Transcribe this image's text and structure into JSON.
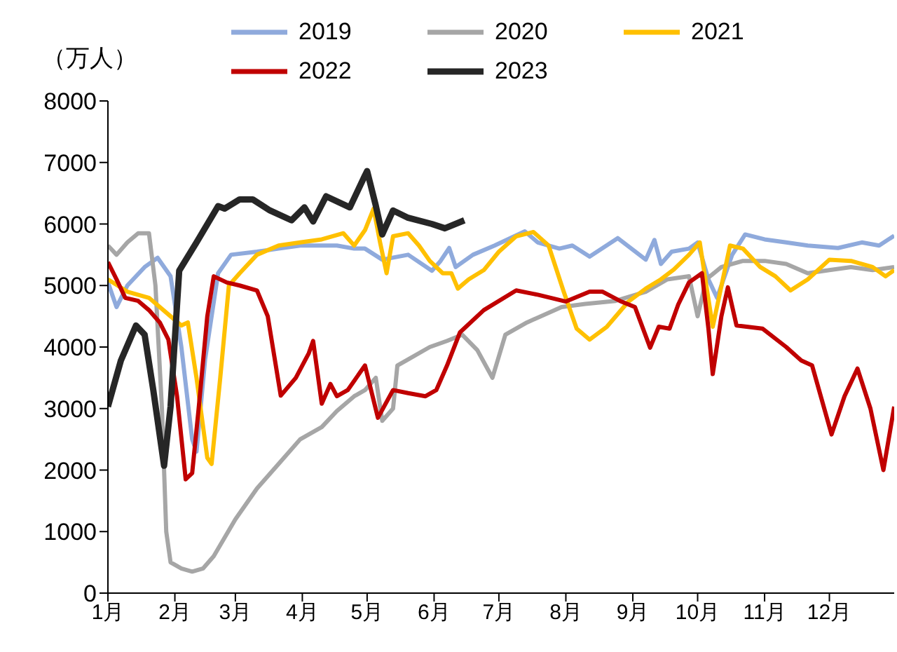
{
  "chart_data": {
    "type": "line",
    "ylabel": "（万人）",
    "xlim": [
      "--01-01",
      "--12-31"
    ],
    "ylim": [
      0,
      8000
    ],
    "yticks": [
      0,
      1000,
      2000,
      3000,
      4000,
      5000,
      6000,
      7000,
      8000
    ],
    "xticks": [
      {
        "value": "--01-01",
        "label": "1月"
      },
      {
        "value": "--02-01",
        "label": "2月"
      },
      {
        "value": "--03-01",
        "label": "3月"
      },
      {
        "value": "--04-01",
        "label": "4月"
      },
      {
        "value": "--05-01",
        "label": "5月"
      },
      {
        "value": "--06-01",
        "label": "6月"
      },
      {
        "value": "--07-01",
        "label": "7月"
      },
      {
        "value": "--08-01",
        "label": "8月"
      },
      {
        "value": "--09-01",
        "label": "9月"
      },
      {
        "value": "--10-01",
        "label": "10月"
      },
      {
        "value": "--11-01",
        "label": "11月"
      },
      {
        "value": "--12-01",
        "label": "12月"
      }
    ],
    "grid": false,
    "legend": "top",
    "marker": "none",
    "line_style": "solid",
    "series": [
      {
        "name": "2019",
        "color": "#8faadc",
        "x": [
          "--01-01",
          "--01-05",
          "--01-10",
          "--01-18",
          "--01-24",
          "--01-30",
          "--02-04",
          "--02-09",
          "--02-11",
          "--02-15",
          "--02-21",
          "--02-27",
          "--03-11",
          "--03-21",
          "--03-31",
          "--04-10",
          "--04-17",
          "--04-25",
          "--04-30",
          "--05-08",
          "--05-20",
          "--05-31",
          "--06-04",
          "--06-08",
          "--06-11",
          "--06-19",
          "--06-29",
          "--07-13",
          "--07-19",
          "--07-29",
          "--08-04",
          "--08-12",
          "--08-25",
          "--09-07",
          "--09-11",
          "--09-14",
          "--09-19",
          "--09-27",
          "--10-01",
          "--10-06",
          "--10-10",
          "--10-17",
          "--10-23",
          "--11-01",
          "--11-11",
          "--11-21",
          "--12-05",
          "--12-16",
          "--12-24",
          "--12-31"
        ],
        "values": [
          5050,
          4650,
          5000,
          5300,
          5450,
          5150,
          4000,
          2500,
          2300,
          3800,
          5200,
          5500,
          5550,
          5600,
          5650,
          5650,
          5650,
          5600,
          5600,
          5420,
          5500,
          5240,
          5400,
          5610,
          5300,
          5500,
          5650,
          5880,
          5700,
          5600,
          5650,
          5470,
          5770,
          5420,
          5740,
          5350,
          5550,
          5600,
          5700,
          5100,
          4800,
          5500,
          5830,
          5750,
          5700,
          5650,
          5610,
          5700,
          5650,
          5810
        ]
      },
      {
        "name": "2020",
        "color": "#a6a6a6",
        "x": [
          "--01-01",
          "--01-05",
          "--01-10",
          "--01-15",
          "--01-20",
          "--01-23",
          "--01-26",
          "--01-28",
          "--01-30",
          "--02-04",
          "--02-09",
          "--02-14",
          "--02-19",
          "--02-24",
          "--03-01",
          "--03-11",
          "--03-21",
          "--03-31",
          "--04-10",
          "--04-17",
          "--04-25",
          "--04-30",
          "--05-05",
          "--05-08",
          "--05-13",
          "--05-15",
          "--05-20",
          "--05-30",
          "--06-07",
          "--06-14",
          "--06-21",
          "--06-28",
          "--07-04",
          "--07-14",
          "--07-30",
          "--08-10",
          "--08-24",
          "--09-07",
          "--09-17",
          "--09-27",
          "--10-01",
          "--10-05",
          "--10-12",
          "--10-22",
          "--11-01",
          "--11-11",
          "--11-21",
          "--12-01",
          "--12-11",
          "--12-21",
          "--12-31"
        ],
        "values": [
          5650,
          5500,
          5700,
          5850,
          5850,
          5000,
          3000,
          1000,
          500,
          400,
          350,
          400,
          600,
          900,
          1200,
          1700,
          2100,
          2500,
          2700,
          2960,
          3200,
          3300,
          3500,
          2800,
          3000,
          3700,
          3800,
          4000,
          4100,
          4200,
          3950,
          3500,
          4200,
          4400,
          4650,
          4700,
          4750,
          4900,
          5100,
          5150,
          4500,
          5100,
          5300,
          5400,
          5400,
          5350,
          5200,
          5250,
          5300,
          5250,
          5300
        ]
      },
      {
        "name": "2021",
        "color": "#ffc000",
        "x": [
          "--01-01",
          "--01-10",
          "--01-20",
          "--01-30",
          "--02-04",
          "--02-07",
          "--02-11",
          "--02-16",
          "--02-18",
          "--02-22",
          "--02-26",
          "--03-03",
          "--03-11",
          "--03-21",
          "--03-31",
          "--04-10",
          "--04-20",
          "--04-25",
          "--04-30",
          "--05-04",
          "--05-07",
          "--05-10",
          "--05-13",
          "--05-20",
          "--05-25",
          "--05-30",
          "--06-05",
          "--06-09",
          "--06-12",
          "--06-17",
          "--06-24",
          "--07-01",
          "--07-09",
          "--07-17",
          "--07-24",
          "--07-31",
          "--08-06",
          "--08-12",
          "--08-20",
          "--08-30",
          "--09-07",
          "--09-14",
          "--09-20",
          "--09-27",
          "--10-02",
          "--10-05",
          "--10-08",
          "--10-16",
          "--10-22",
          "--10-30",
          "--11-06",
          "--11-13",
          "--11-21",
          "--12-01",
          "--12-11",
          "--12-21",
          "--12-27",
          "--12-31"
        ],
        "values": [
          5100,
          4900,
          4800,
          4500,
          4350,
          4400,
          3500,
          2200,
          2100,
          3500,
          5000,
          5200,
          5500,
          5650,
          5700,
          5750,
          5850,
          5650,
          5900,
          6250,
          5700,
          5200,
          5800,
          5850,
          5650,
          5400,
          5200,
          5200,
          4950,
          5100,
          5250,
          5550,
          5800,
          5870,
          5650,
          4900,
          4300,
          4120,
          4330,
          4740,
          4950,
          5100,
          5260,
          5500,
          5700,
          5000,
          4330,
          5650,
          5600,
          5300,
          5150,
          4920,
          5100,
          5420,
          5400,
          5300,
          5150,
          5250
        ]
      },
      {
        "name": "2022",
        "color": "#c00000",
        "x": [
          "--01-01",
          "--01-05",
          "--01-09",
          "--01-15",
          "--01-20",
          "--01-25",
          "--01-29",
          "--02-02",
          "--02-06",
          "--02-09",
          "--02-12",
          "--02-16",
          "--02-19",
          "--02-25",
          "--03-03",
          "--03-11",
          "--03-16",
          "--03-22",
          "--03-29",
          "--04-04",
          "--04-06",
          "--04-10",
          "--04-14",
          "--04-17",
          "--04-22",
          "--04-26",
          "--04-30",
          "--05-06",
          "--05-13",
          "--05-20",
          "--05-28",
          "--06-02",
          "--06-07",
          "--06-13",
          "--06-24",
          "--07-09",
          "--07-19",
          "--08-01",
          "--08-12",
          "--08-18",
          "--08-26",
          "--09-02",
          "--09-09",
          "--09-13",
          "--09-18",
          "--09-22",
          "--09-27",
          "--10-03",
          "--10-06",
          "--10-08",
          "--10-12",
          "--10-15",
          "--10-19",
          "--10-31",
          "--11-11",
          "--11-18",
          "--11-23",
          "--12-02",
          "--12-08",
          "--12-14",
          "--12-20",
          "--12-26",
          "--12-31"
        ],
        "values": [
          5380,
          5100,
          4800,
          4750,
          4600,
          4400,
          4120,
          3200,
          1850,
          1950,
          3000,
          4500,
          5150,
          5050,
          5000,
          4920,
          4500,
          3210,
          3500,
          3900,
          4100,
          3080,
          3400,
          3200,
          3300,
          3500,
          3700,
          2850,
          3300,
          3250,
          3200,
          3300,
          3700,
          4240,
          4600,
          4920,
          4850,
          4740,
          4900,
          4900,
          4750,
          4650,
          3990,
          4330,
          4300,
          4690,
          5050,
          5200,
          4300,
          3560,
          4500,
          4970,
          4350,
          4300,
          4000,
          3780,
          3700,
          2580,
          3200,
          3650,
          3000,
          2000,
          3030
        ]
      },
      {
        "name": "2023",
        "color": "#262626",
        "x": [
          "--01-01",
          "--01-07",
          "--01-14",
          "--01-18",
          "--01-22",
          "--01-27",
          "--01-30",
          "--02-03",
          "--02-11",
          "--02-21",
          "--02-24",
          "--03-03",
          "--03-09",
          "--03-17",
          "--03-27",
          "--04-02",
          "--04-06",
          "--04-12",
          "--04-23",
          "--04-30",
          "--05-01",
          "--05-05",
          "--05-08",
          "--05-13",
          "--05-20",
          "--05-31",
          "--06-06",
          "--06-15"
        ],
        "values": [
          3030,
          3780,
          4350,
          4200,
          3300,
          2070,
          3030,
          5240,
          5700,
          6290,
          6250,
          6400,
          6400,
          6220,
          6060,
          6270,
          6040,
          6450,
          6270,
          6790,
          6860,
          6300,
          5830,
          6220,
          6100,
          6000,
          5930,
          6060
        ]
      }
    ]
  }
}
